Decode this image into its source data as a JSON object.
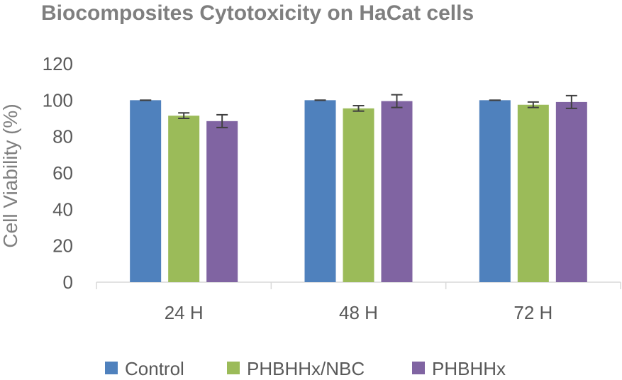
{
  "chart_data": {
    "type": "bar",
    "title": "Biocomposites Cytotoxicity on HaCat cells",
    "xlabel": "",
    "ylabel": "Cell Viability (%)",
    "ylim": [
      0,
      120
    ],
    "yticks": [
      0,
      20,
      40,
      60,
      80,
      100,
      120
    ],
    "categories": [
      "24 H",
      "48 H",
      "72 H"
    ],
    "series": [
      {
        "name": "Control",
        "color": "#4f81bd",
        "values": [
          100,
          100,
          100
        ],
        "errors": [
          0,
          0,
          0
        ]
      },
      {
        "name": "PHBHHx/NBC",
        "color": "#9bbb59",
        "values": [
          91.5,
          95.5,
          97.5
        ],
        "errors": [
          1.5,
          1.5,
          1.5
        ]
      },
      {
        "name": "PHBHHx",
        "color": "#8064a2",
        "values": [
          88.5,
          99.5,
          99
        ],
        "errors": [
          3.5,
          3.5,
          3.5
        ]
      }
    ],
    "grid": false,
    "legend_position": "bottom"
  }
}
